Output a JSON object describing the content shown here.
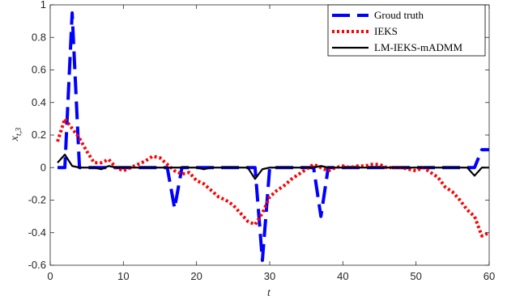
{
  "chart_data": {
    "type": "line",
    "title": "",
    "xlabel": "t",
    "ylabel": "x",
    "ylabel_subscript": "t,3",
    "xlim": [
      0,
      60
    ],
    "ylim": [
      -0.6,
      1
    ],
    "xticks": [
      0,
      10,
      20,
      30,
      40,
      50,
      60
    ],
    "yticks": [
      -0.6,
      -0.4,
      -0.2,
      0,
      0.2,
      0.4,
      0.6,
      0.8,
      1
    ],
    "ytick_labels": [
      "-0.6",
      "-0.4",
      "-0.2",
      "0",
      "0.2",
      "0.4",
      "0.6",
      "0.8",
      "1"
    ],
    "grid": false,
    "legend_position": "top-right",
    "series": [
      {
        "name": "Groud truth",
        "color": "#0000ff",
        "style": "dashed",
        "x": [
          1,
          2,
          3,
          4,
          5,
          6,
          7,
          8,
          9,
          10,
          11,
          12,
          13,
          14,
          15,
          16,
          17,
          18,
          19,
          20,
          21,
          22,
          23,
          24,
          25,
          26,
          27,
          28,
          29,
          30,
          31,
          32,
          33,
          34,
          35,
          36,
          37,
          38,
          39,
          40,
          41,
          42,
          43,
          44,
          45,
          46,
          47,
          48,
          49,
          50,
          51,
          52,
          53,
          54,
          55,
          56,
          57,
          58,
          59,
          60
        ],
        "values": [
          0,
          0,
          0.95,
          0,
          0,
          0,
          0,
          0,
          0,
          0,
          0,
          0,
          0,
          0,
          0,
          0,
          -0.25,
          0,
          0,
          0,
          0,
          0,
          0,
          0,
          0,
          0,
          0,
          0,
          -0.57,
          0,
          0,
          0,
          0,
          0,
          0,
          0,
          -0.3,
          0,
          0,
          0,
          0,
          0,
          0,
          0,
          0,
          0,
          0,
          0,
          0,
          0,
          0,
          0,
          0,
          0,
          0,
          0,
          0,
          0,
          0.11,
          0.11
        ]
      },
      {
        "name": "IEKS",
        "color": "#ff0000",
        "style": "dotted",
        "x": [
          1,
          2,
          3,
          4,
          5,
          6,
          7,
          8,
          9,
          10,
          11,
          12,
          13,
          14,
          15,
          16,
          17,
          18,
          19,
          20,
          21,
          22,
          23,
          24,
          25,
          26,
          27,
          28,
          29,
          30,
          31,
          32,
          33,
          34,
          35,
          36,
          37,
          38,
          39,
          40,
          41,
          42,
          43,
          44,
          45,
          46,
          47,
          48,
          49,
          50,
          51,
          52,
          53,
          54,
          55,
          56,
          57,
          58,
          59,
          60
        ],
        "values": [
          0.16,
          0.3,
          0.24,
          0.18,
          0.1,
          0.03,
          0.03,
          0.05,
          0.0,
          -0.02,
          0.0,
          0.02,
          0.04,
          0.07,
          0.06,
          0.02,
          -0.02,
          -0.04,
          -0.03,
          -0.08,
          -0.1,
          -0.14,
          -0.18,
          -0.2,
          -0.23,
          -0.28,
          -0.33,
          -0.35,
          -0.28,
          -0.18,
          -0.14,
          -0.11,
          -0.07,
          -0.04,
          -0.01,
          0.02,
          0.0,
          -0.02,
          0.0,
          0.01,
          0.0,
          0.01,
          0.01,
          0.02,
          0.02,
          0.0,
          0.0,
          0.0,
          -0.01,
          -0.02,
          0.0,
          -0.03,
          -0.06,
          -0.12,
          -0.15,
          -0.2,
          -0.26,
          -0.3,
          -0.42,
          -0.4
        ]
      },
      {
        "name": "LM-IEKS-mADMM",
        "color": "#000000",
        "style": "solid",
        "x": [
          1,
          2,
          3,
          4,
          5,
          6,
          7,
          8,
          9,
          10,
          11,
          12,
          13,
          14,
          15,
          16,
          17,
          18,
          19,
          20,
          21,
          22,
          23,
          24,
          25,
          26,
          27,
          28,
          29,
          30,
          31,
          32,
          33,
          34,
          35,
          36,
          37,
          38,
          39,
          40,
          41,
          42,
          43,
          44,
          45,
          46,
          47,
          48,
          49,
          50,
          51,
          52,
          53,
          54,
          55,
          56,
          57,
          58,
          59,
          60
        ],
        "values": [
          0.03,
          0.08,
          0.01,
          0.0,
          0.0,
          0.0,
          -0.01,
          0.01,
          0.0,
          0.0,
          0.0,
          0.0,
          0.0,
          0.0,
          0.0,
          0.0,
          0.0,
          0.0,
          0.0,
          0.0,
          -0.01,
          0.0,
          0.0,
          0.0,
          0.0,
          0.0,
          0.0,
          -0.07,
          -0.01,
          0.0,
          0.0,
          0.0,
          0.0,
          0.0,
          0.0,
          0.0,
          0.01,
          0.0,
          0.0,
          0.0,
          0.0,
          0.0,
          0.0,
          0.0,
          0.0,
          0.0,
          0.0,
          0.0,
          0.0,
          0.0,
          0.0,
          0.0,
          0.0,
          0.0,
          0.0,
          0.0,
          0.0,
          -0.05,
          0.0,
          0.0
        ]
      }
    ]
  }
}
